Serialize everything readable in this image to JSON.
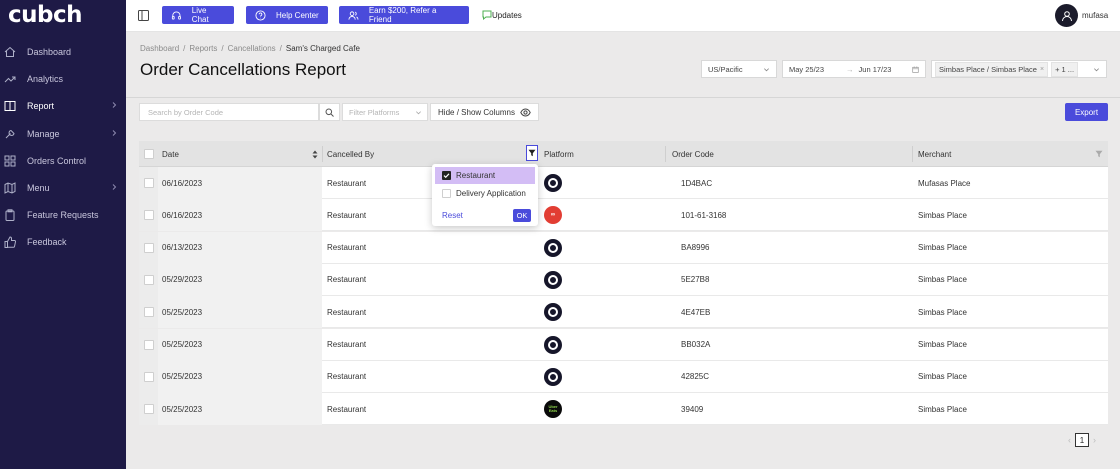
{
  "app": {
    "logo": "cubch"
  },
  "sidebar": {
    "items": [
      {
        "label": "Dashboard",
        "icon": "home-icon"
      },
      {
        "label": "Analytics",
        "icon": "trend-icon"
      },
      {
        "label": "Report",
        "icon": "book-icon"
      },
      {
        "label": "Manage",
        "icon": "wrench-icon"
      },
      {
        "label": "Orders Control",
        "icon": "grid-icon"
      },
      {
        "label": "Menu",
        "icon": "map-icon"
      },
      {
        "label": "Feature Requests",
        "icon": "clipboard-icon"
      },
      {
        "label": "Feedback",
        "icon": "thumbs-up-icon"
      }
    ]
  },
  "topbar": {
    "live_chat": "Live Chat",
    "help_center": "Help Center",
    "refer": "Earn $200, Refer a Friend",
    "updates": "Updates",
    "username": "mufasa"
  },
  "breadcrumb": [
    "Dashboard",
    "Reports",
    "Cancellations",
    "Sam's Charged Cafe"
  ],
  "page_title": "Order Cancellations Report",
  "filters": {
    "timezone": "US/Pacific",
    "date_from": "May 25/23",
    "date_to": "Jun 17/23",
    "location_tag": "Simbas Place / Simbas Place",
    "location_more": "+ 1 ..."
  },
  "toolbar": {
    "search_placeholder": "Search by Order Code",
    "filter_platforms_placeholder": "Filter Platforms",
    "show_hide_columns": "Hide / Show Columns",
    "export": "Export"
  },
  "table": {
    "headers": {
      "date": "Date",
      "cancelled_by": "Cancelled By",
      "platform": "Platform",
      "order_code": "Order Code",
      "merchant": "Merchant"
    },
    "rows": [
      {
        "date": "06/16/2023",
        "cancelled_by": "Restaurant",
        "platform": "cubeh",
        "order_code": "1D4BAC",
        "merchant": "Mufasas Place"
      },
      {
        "date": "06/16/2023",
        "cancelled_by": "Restaurant",
        "platform": "delivery",
        "order_code": "101-61-3168",
        "merchant": "Simbas Place"
      },
      {
        "date": "06/13/2023",
        "cancelled_by": "Restaurant",
        "platform": "cubeh",
        "order_code": "BA8996",
        "merchant": "Simbas Place"
      },
      {
        "date": "05/29/2023",
        "cancelled_by": "Restaurant",
        "platform": "cubeh",
        "order_code": "5E27B8",
        "merchant": "Simbas Place"
      },
      {
        "date": "05/25/2023",
        "cancelled_by": "Restaurant",
        "platform": "cubeh",
        "order_code": "4E47EB",
        "merchant": "Simbas Place"
      },
      {
        "date": "05/25/2023",
        "cancelled_by": "Restaurant",
        "platform": "cubeh",
        "order_code": "BB032A",
        "merchant": "Simbas Place"
      },
      {
        "date": "05/25/2023",
        "cancelled_by": "Restaurant",
        "platform": "cubeh",
        "order_code": "42825C",
        "merchant": "Simbas Place"
      },
      {
        "date": "05/25/2023",
        "cancelled_by": "Restaurant",
        "platform": "uber",
        "order_code": "39409",
        "merchant": "Simbas Place"
      }
    ]
  },
  "platform_filter_popup": {
    "options": [
      {
        "label": "Restaurant",
        "checked": true
      },
      {
        "label": "Delivery Application",
        "checked": false
      }
    ],
    "reset": "Reset",
    "ok": "OK"
  },
  "pagination": {
    "current_page": "1"
  },
  "colors": {
    "sidebar_bg": "#1e1a46",
    "accent": "#4a4bdb",
    "selected_option": "#d3bdf5"
  }
}
